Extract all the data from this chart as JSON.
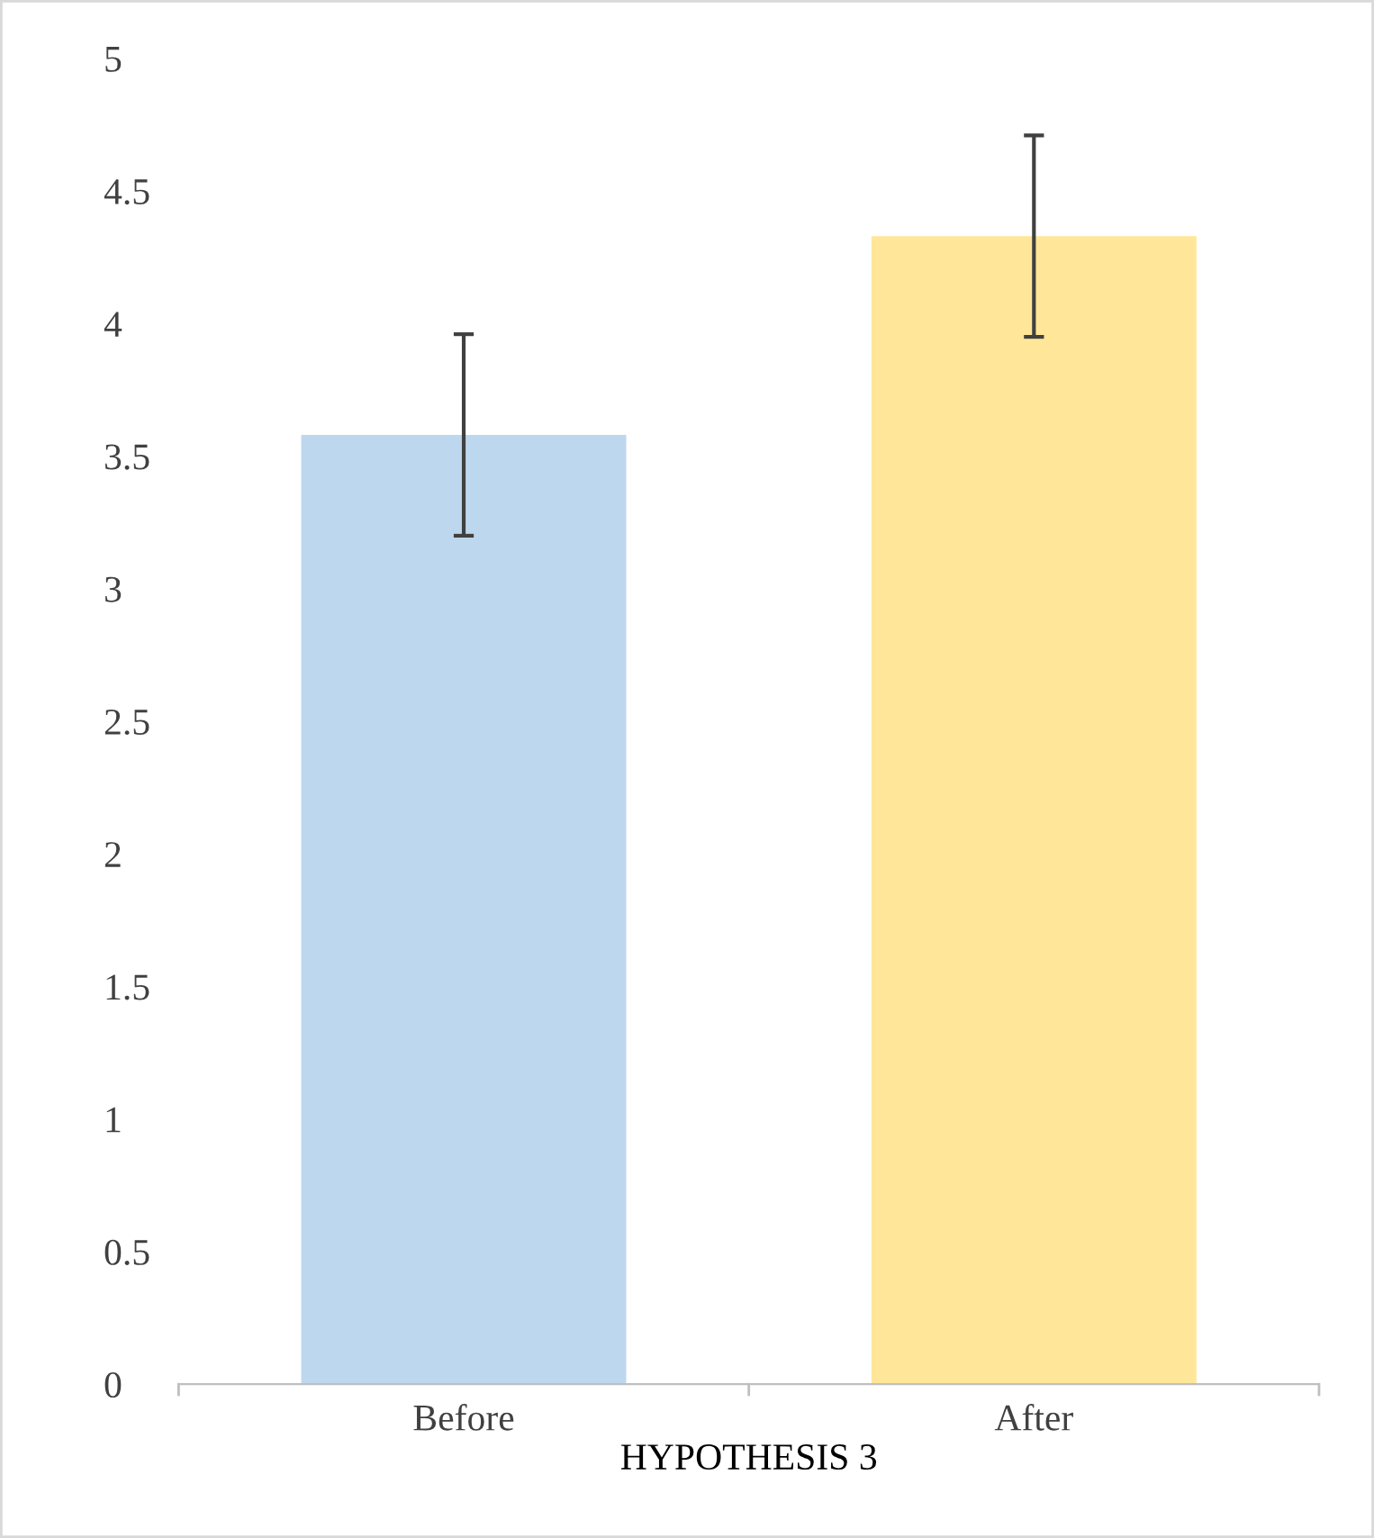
{
  "chart_data": {
    "type": "bar",
    "xlabel": "HYPOTHESIS 3",
    "categories": [
      "Before",
      "After"
    ],
    "series": [
      {
        "colors": [
          "#bdd7ee",
          "#ffe699"
        ],
        "values": [
          3.58,
          4.33
        ],
        "errors": [
          0.38,
          0.38
        ]
      }
    ],
    "ylim": [
      0,
      5
    ],
    "yticks": [
      0,
      0.5,
      1,
      1.5,
      2,
      2.5,
      3,
      3.5,
      4,
      4.5,
      5
    ],
    "grid": false,
    "legend": false
  }
}
